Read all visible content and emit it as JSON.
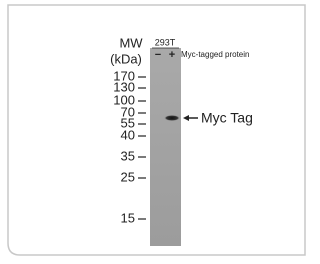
{
  "header": {
    "mw": "MW",
    "units": "(kDa)"
  },
  "lane": {
    "cell_line": "293T",
    "minus": "−",
    "plus": "+",
    "label": "Myc-tagged protein"
  },
  "markers": [
    170,
    130,
    100,
    70,
    55,
    40,
    35,
    25,
    15
  ],
  "band": {
    "label": "Myc Tag"
  }
}
